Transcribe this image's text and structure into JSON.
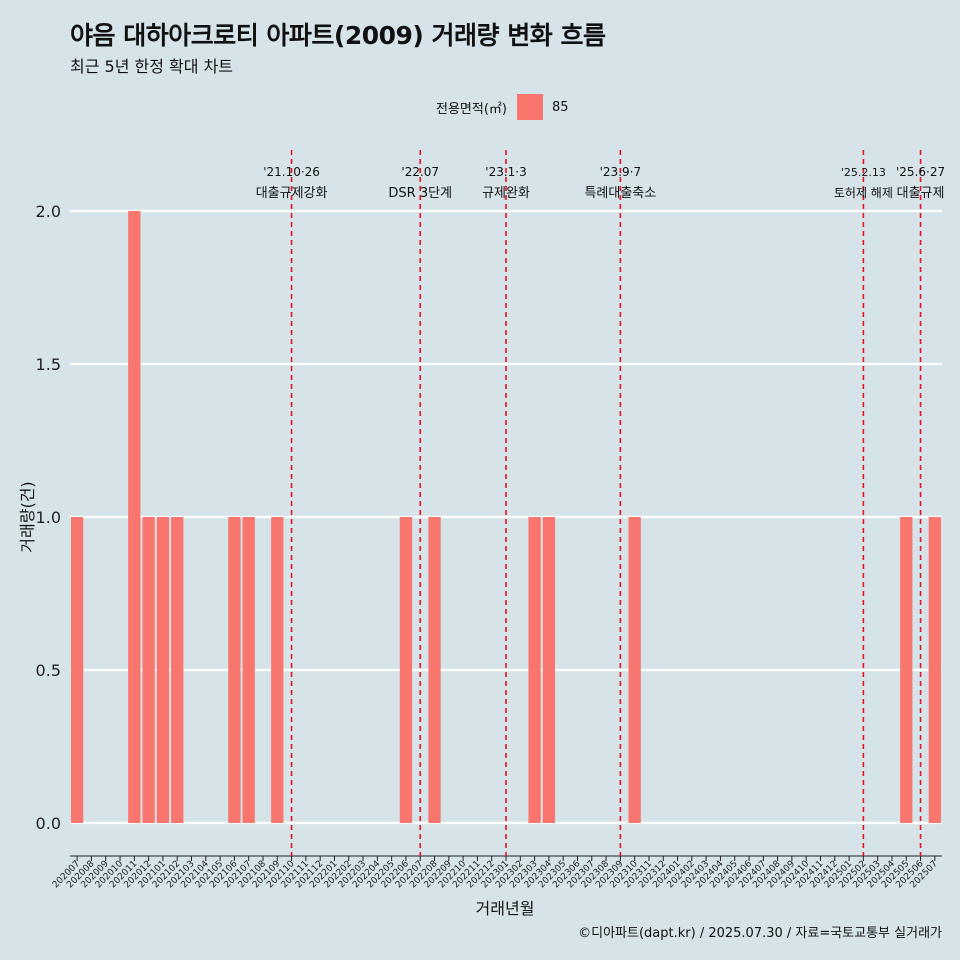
{
  "title": "야음 대하아크로티 아파트(2009) 거래량 변화 흐름",
  "subtitle": "최근 5년 한정 확대 차트",
  "caption": "©디아파트(dapt.kr) / 2025.07.30 / 자료=국토교통부 실거래가",
  "legend": {
    "title": "전용면적(㎡)",
    "items": [
      {
        "label": "85",
        "color": "#f8766d"
      }
    ]
  },
  "chart_data": {
    "type": "bar",
    "xlabel": "거래년월",
    "ylabel": "거래량(건)",
    "ylim": [
      0,
      2
    ],
    "yticks": [
      "0.0",
      "0.5",
      "1.0",
      "1.5",
      "2.0"
    ],
    "grid": true,
    "legend_position": "top",
    "categories": [
      "202007",
      "202008",
      "202009",
      "202010",
      "202011",
      "202012",
      "202101",
      "202102",
      "202103",
      "202104",
      "202105",
      "202106",
      "202107",
      "202108",
      "202109",
      "202110",
      "202111",
      "202112",
      "202201",
      "202202",
      "202203",
      "202204",
      "202205",
      "202206",
      "202207",
      "202208",
      "202209",
      "202210",
      "202211",
      "202212",
      "202301",
      "202302",
      "202303",
      "202304",
      "202305",
      "202306",
      "202307",
      "202308",
      "202309",
      "202310",
      "202311",
      "202312",
      "202401",
      "202402",
      "202403",
      "202404",
      "202405",
      "202406",
      "202407",
      "202408",
      "202409",
      "202410",
      "202411",
      "202412",
      "202501",
      "202502",
      "202503",
      "202504",
      "202505",
      "202506",
      "202507"
    ],
    "series": [
      {
        "name": "85",
        "color": "#f8766d",
        "values": [
          1,
          0,
          0,
          0,
          2,
          1,
          1,
          1,
          0,
          0,
          0,
          1,
          1,
          0,
          1,
          0,
          0,
          0,
          0,
          0,
          0,
          0,
          0,
          1,
          0,
          1,
          0,
          0,
          0,
          0,
          0,
          0,
          1,
          1,
          0,
          0,
          0,
          0,
          0,
          1,
          0,
          0,
          0,
          0,
          0,
          0,
          0,
          0,
          0,
          0,
          0,
          0,
          0,
          0,
          0,
          0,
          0,
          0,
          1,
          0,
          1
        ]
      }
    ],
    "annotations": [
      {
        "category": "202110",
        "lines": [
          "'21.10·26",
          "대출규제강화"
        ]
      },
      {
        "category": "202207",
        "lines": [
          "'22.07",
          "DSR 3단계"
        ]
      },
      {
        "category": "202301",
        "lines": [
          "'23.1·3",
          "규제완화"
        ]
      },
      {
        "category": "202309",
        "lines": [
          "'23.9·7",
          "특례대출축소"
        ]
      },
      {
        "category": "202502",
        "lines": [
          "'25.2.13",
          "토허제 해제"
        ]
      },
      {
        "category": "202506",
        "lines": [
          "'25.6·27",
          "대출규제"
        ]
      }
    ],
    "annotation_color": "#e8141c"
  }
}
